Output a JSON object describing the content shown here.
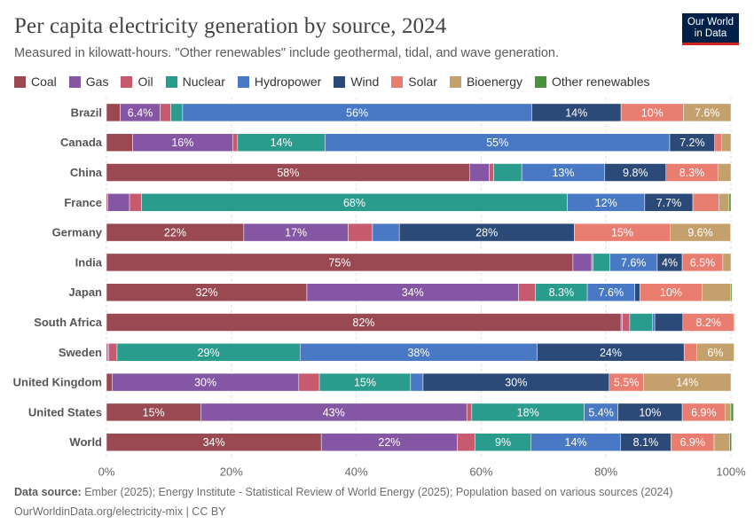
{
  "header": {
    "title": "Per capita electricity generation by source, 2024",
    "subtitle": "Measured in kilowatt-hours. \"Other renewables\" include geothermal, tidal, and wave generation.",
    "logo_line1": "Our World",
    "logo_line2": "in Data"
  },
  "footer": {
    "source_label": "Data source:",
    "source_text": " Ember (2025); Energy Institute - Statistical Review of World Energy (2025); Population based on various sources (2024)",
    "url": "OurWorldinData.org/electricity-mix | CC BY"
  },
  "chart_data": {
    "type": "bar",
    "orientation": "horizontal",
    "stacked": true,
    "percent": true,
    "xlim": [
      0,
      100
    ],
    "x_ticks": [
      "0%",
      "20%",
      "40%",
      "60%",
      "80%",
      "100%"
    ],
    "grid": true,
    "legend_position": "top",
    "categories": [
      "Brazil",
      "Canada",
      "China",
      "France",
      "Germany",
      "India",
      "Japan",
      "South Africa",
      "Sweden",
      "United Kingdom",
      "United States",
      "World"
    ],
    "series": [
      {
        "name": "Coal",
        "color": "#9a4953",
        "values": [
          2.2,
          4.2,
          58.2,
          0.2,
          22.0,
          74.7,
          32.1,
          82.4,
          0.2,
          0.9,
          15.1,
          34.4
        ]
      },
      {
        "name": "Gas",
        "color": "#8556a4",
        "values": [
          6.4,
          16.0,
          3.1,
          3.5,
          16.7,
          3.0,
          33.9,
          0.2,
          0.2,
          29.9,
          42.6,
          21.8
        ]
      },
      {
        "name": "Oil",
        "color": "#c75a6e",
        "values": [
          1.7,
          0.8,
          0.7,
          1.9,
          3.9,
          0.2,
          2.7,
          1.2,
          1.3,
          3.3,
          0.8,
          2.8
        ]
      },
      {
        "name": "Nuclear",
        "color": "#2a9c8e",
        "values": [
          1.9,
          14.0,
          4.5,
          68.2,
          0.0,
          2.7,
          8.3,
          3.6,
          29.3,
          14.6,
          18.0,
          9.0
        ]
      },
      {
        "name": "Hydropower",
        "color": "#4979c5",
        "values": [
          55.9,
          55.2,
          13.3,
          12.4,
          4.3,
          7.6,
          7.6,
          0.4,
          38.0,
          2.0,
          5.4,
          14.3
        ]
      },
      {
        "name": "Wind",
        "color": "#2c4a78",
        "values": [
          14.3,
          7.2,
          9.8,
          7.7,
          28.0,
          4.0,
          0.8,
          4.5,
          23.5,
          29.8,
          10.3,
          8.1
        ]
      },
      {
        "name": "Solar",
        "color": "#e87d70",
        "values": [
          10.0,
          1.1,
          8.3,
          4.2,
          15.4,
          6.5,
          10.0,
          8.2,
          2.0,
          5.5,
          6.9,
          6.9
        ]
      },
      {
        "name": "Bioenergy",
        "color": "#c4a16c",
        "values": [
          7.6,
          1.5,
          2.1,
          1.6,
          9.6,
          1.3,
          4.6,
          0.1,
          6.0,
          14.0,
          0.9,
          2.5
        ]
      },
      {
        "name": "Other renewables",
        "color": "#4c8f3d",
        "values": [
          0.0,
          0.0,
          0.0,
          0.3,
          0.1,
          0.0,
          0.2,
          0.1,
          0.0,
          0.0,
          0.4,
          0.3
        ]
      }
    ],
    "data_labels": [
      [
        null,
        "6.4%",
        null,
        null,
        "56%",
        "14%",
        "10%",
        "7.6%",
        null
      ],
      [
        null,
        "16%",
        null,
        "14%",
        "55%",
        "7.2%",
        null,
        null,
        null
      ],
      [
        "58%",
        null,
        null,
        null,
        "13%",
        "9.8%",
        "8.3%",
        null,
        null
      ],
      [
        null,
        null,
        null,
        "68%",
        "12%",
        "7.7%",
        null,
        null,
        null
      ],
      [
        "22%",
        "17%",
        null,
        null,
        null,
        "28%",
        "15%",
        "9.6%",
        null
      ],
      [
        "75%",
        null,
        null,
        null,
        "7.6%",
        "4%",
        "6.5%",
        null,
        null
      ],
      [
        "32%",
        "34%",
        null,
        "8.3%",
        "7.6%",
        null,
        "10%",
        null,
        null
      ],
      [
        "82%",
        null,
        null,
        null,
        null,
        null,
        "8.2%",
        null,
        null
      ],
      [
        null,
        null,
        null,
        "29%",
        "38%",
        "24%",
        null,
        "6%",
        null
      ],
      [
        null,
        "30%",
        null,
        "15%",
        null,
        "30%",
        "5.5%",
        "14%",
        null
      ],
      [
        "15%",
        "43%",
        null,
        "18%",
        "5.4%",
        "10%",
        "6.9%",
        null,
        null
      ],
      [
        "34%",
        "22%",
        null,
        "9%",
        "14%",
        "8.1%",
        "6.9%",
        null,
        null
      ]
    ]
  }
}
